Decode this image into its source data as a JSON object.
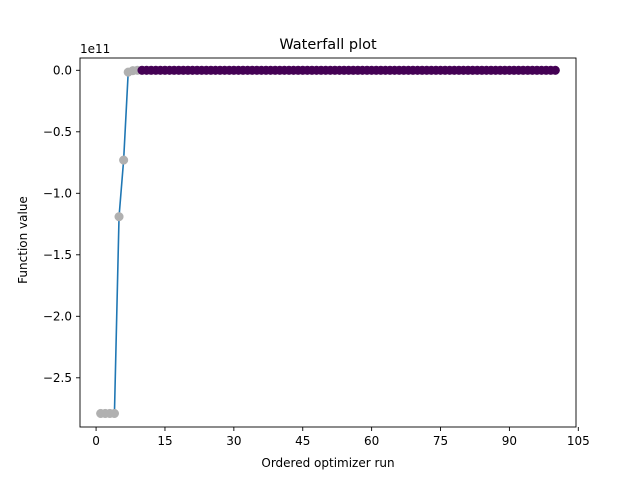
{
  "chart_data": {
    "type": "scatter",
    "title": "Waterfall plot",
    "xlabel": "Ordered optimizer run",
    "ylabel": "Function value",
    "offset_label": "1e11",
    "xlim": [
      -3.5,
      104.5
    ],
    "ylim": [
      -2.9,
      0.1
    ],
    "x_ticks": [
      0,
      15,
      30,
      45,
      60,
      75,
      90,
      105
    ],
    "y_ticks": [
      0.0,
      -0.5,
      -1.0,
      -1.5,
      -2.0,
      -2.5
    ],
    "y_tick_labels": [
      "0.0",
      "−0.5",
      "−1.0",
      "−1.5",
      "−2.0",
      "−2.5"
    ],
    "grid": false,
    "line_color": "#1f77b4",
    "gray_color": "#b0b0b0",
    "purple_color": "#440154",
    "series": [
      {
        "points_gray": [
          {
            "x": 1,
            "y": -2.79
          },
          {
            "x": 2,
            "y": -2.79
          },
          {
            "x": 3,
            "y": -2.79
          },
          {
            "x": 4,
            "y": -2.79
          },
          {
            "x": 5,
            "y": -1.19
          },
          {
            "x": 6,
            "y": -0.73
          },
          {
            "x": 7,
            "y": -0.015
          },
          {
            "x": 8,
            "y": -0.003
          },
          {
            "x": 9,
            "y": 0.0
          }
        ],
        "purple_range": [
          10,
          100
        ],
        "purple_y": 0.0
      }
    ]
  }
}
